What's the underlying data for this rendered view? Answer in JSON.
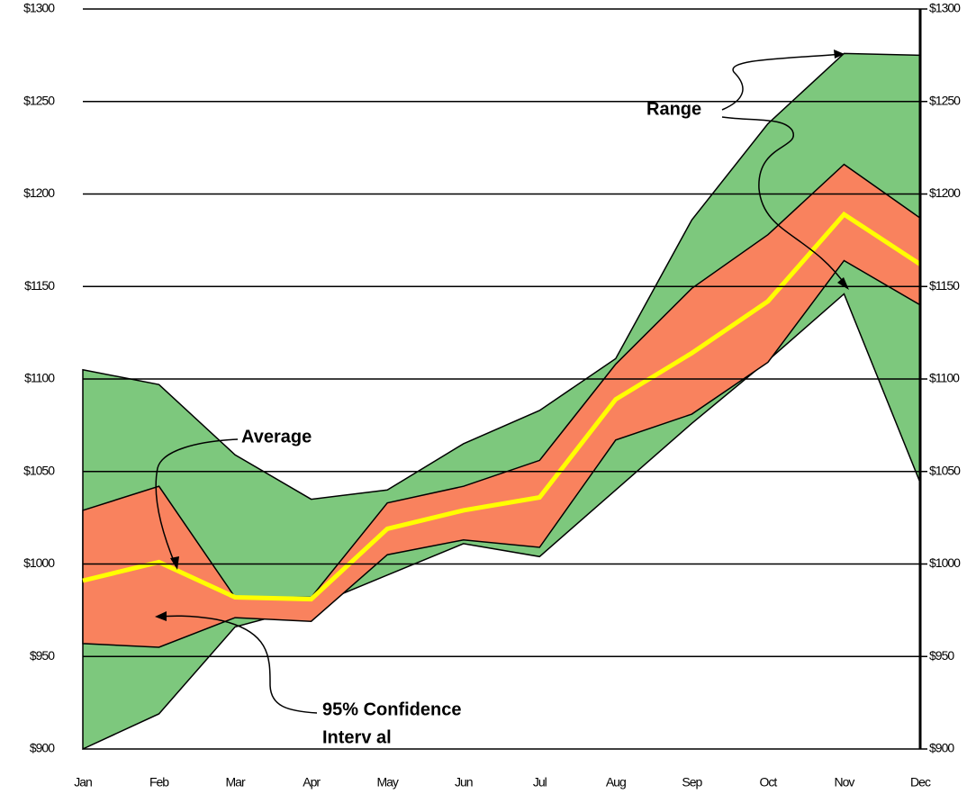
{
  "chart_data": {
    "type": "area",
    "categories": [
      "Jan",
      "Feb",
      "Mar",
      "Apr",
      "May",
      "Jun",
      "Jul",
      "Aug",
      "Sep",
      "Oct",
      "Nov",
      "Dec"
    ],
    "range": {
      "color": "#7dc87d",
      "high": [
        1105,
        1097,
        1059,
        1035,
        1040,
        1065,
        1083,
        1111,
        1186,
        1238,
        1276,
        1275
      ],
      "low": [
        900,
        919,
        966,
        977,
        994,
        1011,
        1004,
        1040,
        1076,
        1110,
        1146,
        1044
      ]
    },
    "ci": {
      "color": "#f9825e",
      "high": [
        1029,
        1042,
        982,
        982,
        1033,
        1042,
        1056,
        1108,
        1149,
        1178,
        1216,
        1187
      ],
      "low": [
        957,
        955,
        971,
        969,
        1005,
        1013,
        1009,
        1067,
        1081,
        1109,
        1164,
        1140
      ]
    },
    "average": {
      "color": "#ffff00",
      "values": [
        991,
        1001,
        982,
        981,
        1019,
        1029,
        1036,
        1089,
        1114,
        1142,
        1189,
        1162
      ]
    },
    "ylim": [
      900,
      1300
    ],
    "yticks": [
      {
        "value": 900,
        "label": "$900"
      },
      {
        "value": 950,
        "label": "$950"
      },
      {
        "value": 1000,
        "label": "$1000"
      },
      {
        "value": 1050,
        "label": "$1050"
      },
      {
        "value": 1100,
        "label": "$1100"
      },
      {
        "value": 1150,
        "label": "$1150"
      },
      {
        "value": 1200,
        "label": "$1200"
      },
      {
        "value": 1250,
        "label": "$1250"
      },
      {
        "value": 1300,
        "label": "$1300"
      }
    ],
    "grid": true,
    "annotations": {
      "range": "Range",
      "average": "Average",
      "ci_line1": "95% Confidence",
      "ci_line2": "Interv al"
    }
  }
}
